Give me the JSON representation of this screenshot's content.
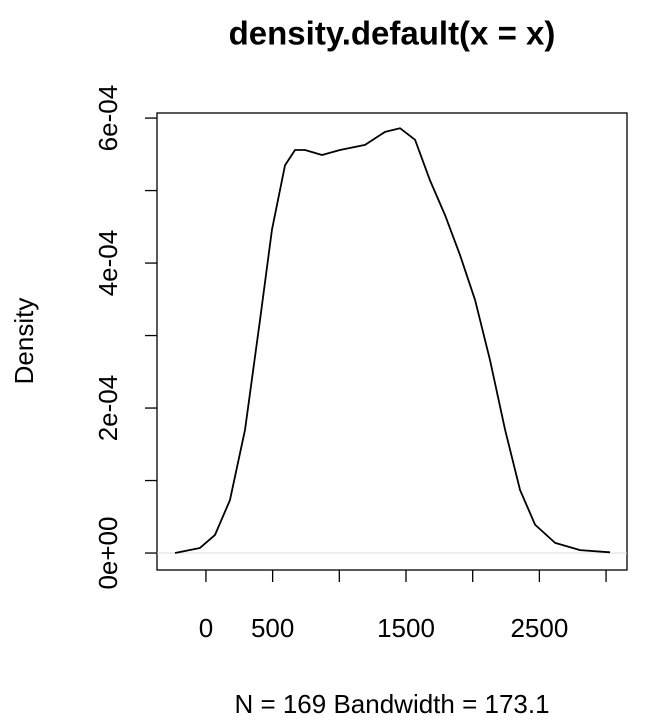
{
  "chart_data": {
    "type": "line",
    "title": "density.default(x = x)",
    "xlabel": "N = 169   Bandwidth = 173.1",
    "ylabel": "Density",
    "xlim": [
      -367,
      3157
    ],
    "ylim": [
      -2.34e-05,
      0.000607
    ],
    "xticks": [
      0,
      500,
      {
        "value": 1000,
        "label": null
      },
      1500,
      {
        "value": 2000,
        "label": null
      },
      2500,
      {
        "value": 3000,
        "label": null
      }
    ],
    "yticks": [
      {
        "value": 0,
        "label": "0e+00"
      },
      {
        "value": 0.0001,
        "label": null
      },
      {
        "value": 0.0002,
        "label": "2e-04"
      },
      {
        "value": 0.0003,
        "label": null
      },
      {
        "value": 0.0004,
        "label": "4e-04"
      },
      {
        "value": 0.0005,
        "label": null
      },
      {
        "value": 0.0006,
        "label": "6e-04"
      }
    ],
    "x": [
      -232,
      -45,
      68,
      180,
      293,
      405,
      495,
      593,
      668,
      743,
      870,
      1005,
      1193,
      1343,
      1455,
      1568,
      1680,
      1793,
      1905,
      2018,
      2130,
      2243,
      2355,
      2468,
      2618,
      2805,
      3030
    ],
    "series": [
      {
        "name": "Density",
        "color": "#000000",
        "values": [
          0,
          7e-06,
          2.5e-05,
          7.3e-05,
          0.00017,
          0.000321,
          0.000446,
          0.000535,
          0.000556,
          0.000556,
          0.000549,
          0.000556,
          0.000563,
          0.000581,
          0.000586,
          0.00057,
          0.000514,
          0.000466,
          0.000411,
          0.000349,
          0.000266,
          0.00017,
          8.7e-05,
          3.9e-05,
          1.4e-05,
          4e-06,
          1e-06
        ]
      }
    ]
  }
}
